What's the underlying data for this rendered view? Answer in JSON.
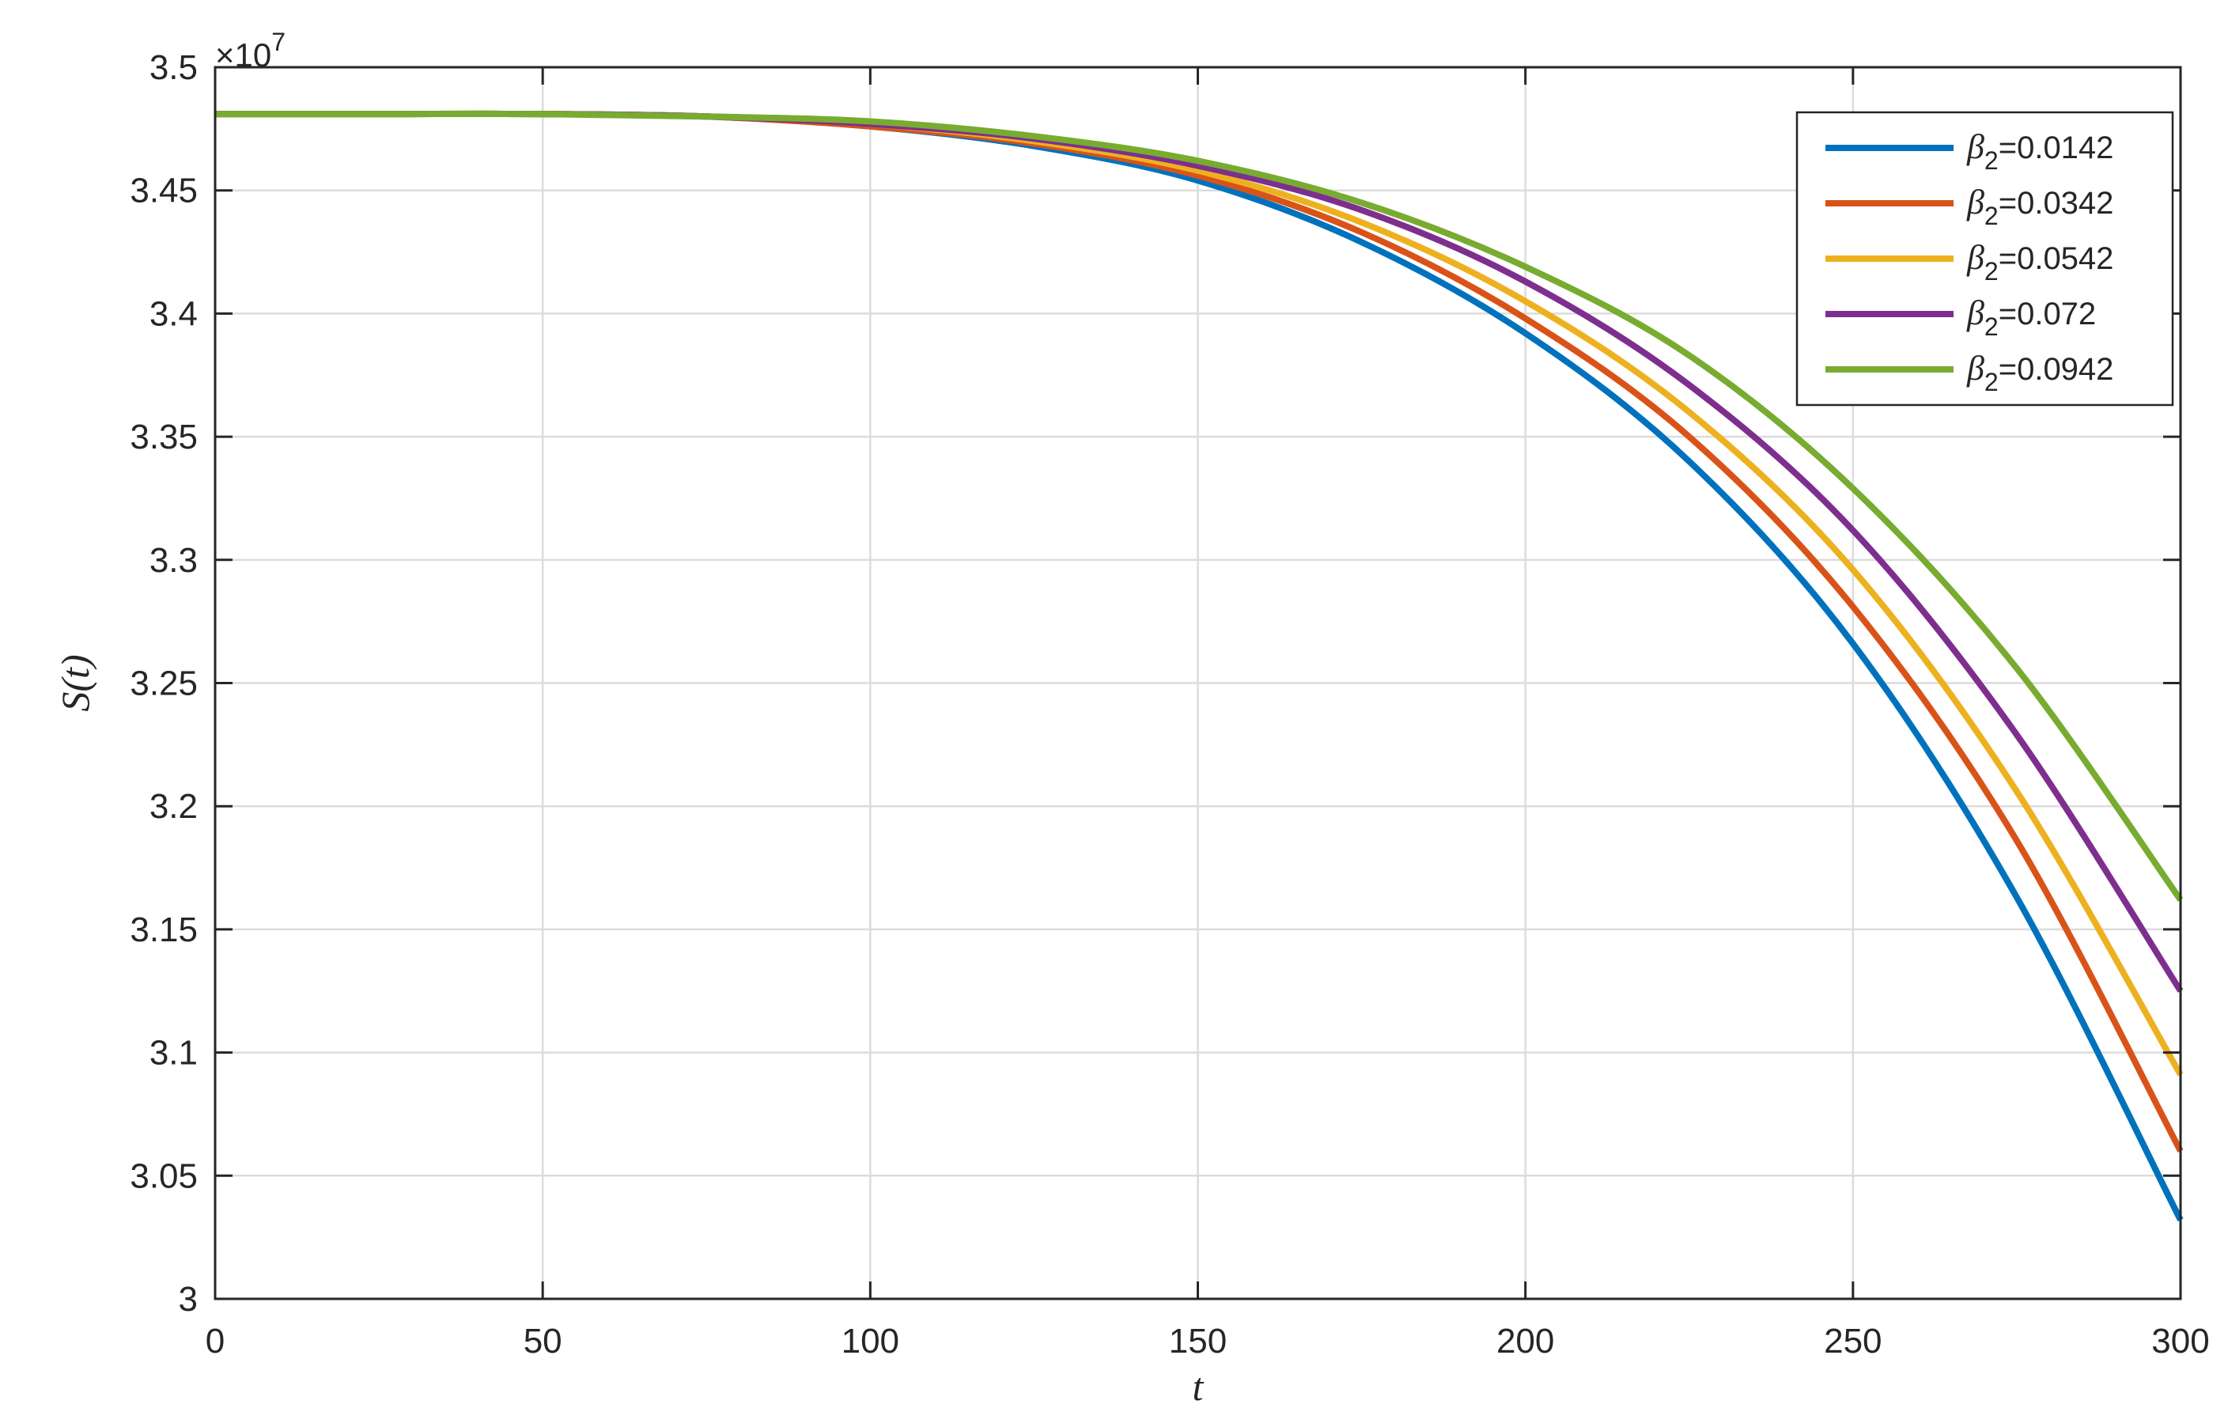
{
  "chart_data": {
    "type": "line",
    "title": "",
    "xlabel": "t",
    "ylabel": "S(t)",
    "y_exponent_label": "×10",
    "y_exponent_power": "7",
    "xlim": [
      0,
      300
    ],
    "ylim": [
      3.0,
      3.5
    ],
    "x_ticks": [
      0,
      50,
      100,
      150,
      200,
      250,
      300
    ],
    "y_ticks": [
      3,
      3.05,
      3.1,
      3.15,
      3.2,
      3.25,
      3.3,
      3.35,
      3.4,
      3.45,
      3.5
    ],
    "x_tick_labels": [
      "0",
      "50",
      "100",
      "150",
      "200",
      "250",
      "300"
    ],
    "y_tick_labels": [
      "3",
      "3.05",
      "3.1",
      "3.15",
      "3.2",
      "3.25",
      "3.3",
      "3.35",
      "3.4",
      "3.45",
      "3.5"
    ],
    "grid": true,
    "legend_position": "top-right",
    "x": [
      0,
      25,
      50,
      75,
      100,
      125,
      150,
      175,
      200,
      225,
      250,
      275,
      300
    ],
    "series": [
      {
        "name": "β2=0.0142",
        "legend_symbol": "β",
        "legend_sub": "2",
        "legend_value": "=0.0142",
        "color": "#0072BD",
        "values": [
          3.481,
          3.481,
          3.481,
          3.48,
          3.476,
          3.468,
          3.454,
          3.429,
          3.392,
          3.34,
          3.266,
          3.163,
          3.032
        ]
      },
      {
        "name": "β2=0.0342",
        "legend_symbol": "β",
        "legend_sub": "2",
        "legend_value": "=0.0342",
        "color": "#D95319",
        "values": [
          3.481,
          3.481,
          3.481,
          3.48,
          3.476,
          3.469,
          3.456,
          3.433,
          3.398,
          3.35,
          3.281,
          3.186,
          3.06
        ]
      },
      {
        "name": "β2=0.0542",
        "legend_symbol": "β",
        "legend_sub": "2",
        "legend_value": "=0.0542",
        "color": "#EDB120",
        "values": [
          3.481,
          3.481,
          3.481,
          3.48,
          3.477,
          3.47,
          3.458,
          3.437,
          3.405,
          3.36,
          3.296,
          3.206,
          3.091
        ]
      },
      {
        "name": "β2=0.072",
        "legend_symbol": "β",
        "legend_sub": "2",
        "legend_value": "=0.072",
        "color": "#7E2F8E",
        "values": [
          3.481,
          3.481,
          3.481,
          3.48,
          3.477,
          3.471,
          3.46,
          3.442,
          3.413,
          3.371,
          3.312,
          3.229,
          3.125
        ]
      },
      {
        "name": "β2=0.0942",
        "legend_symbol": "β",
        "legend_sub": "2",
        "legend_value": "=0.0942",
        "color": "#77AC30",
        "values": [
          3.481,
          3.481,
          3.481,
          3.48,
          3.478,
          3.472,
          3.462,
          3.445,
          3.419,
          3.383,
          3.329,
          3.256,
          3.162
        ]
      }
    ]
  }
}
